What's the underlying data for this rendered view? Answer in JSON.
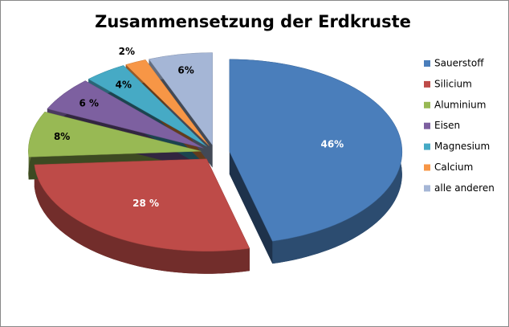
{
  "chart_data": {
    "type": "pie",
    "title": "Zusammensetzung der Erdkruste",
    "categories": [
      "Sauerstoff",
      "Silicium",
      "Aluminium",
      "Eisen",
      "Magnesium",
      "Calcium",
      "alle anderen"
    ],
    "values": [
      46,
      28,
      8,
      6,
      4,
      2,
      6
    ],
    "value_labels": [
      "46%",
      "28 %",
      "8%",
      "6 %",
      "4%",
      "2%",
      "6%"
    ],
    "colors": [
      "#4a7ebb",
      "#be4b48",
      "#98b954",
      "#7d60a0",
      "#46aac5",
      "#f79646",
      "#a5b6d6"
    ],
    "legend": "right"
  }
}
